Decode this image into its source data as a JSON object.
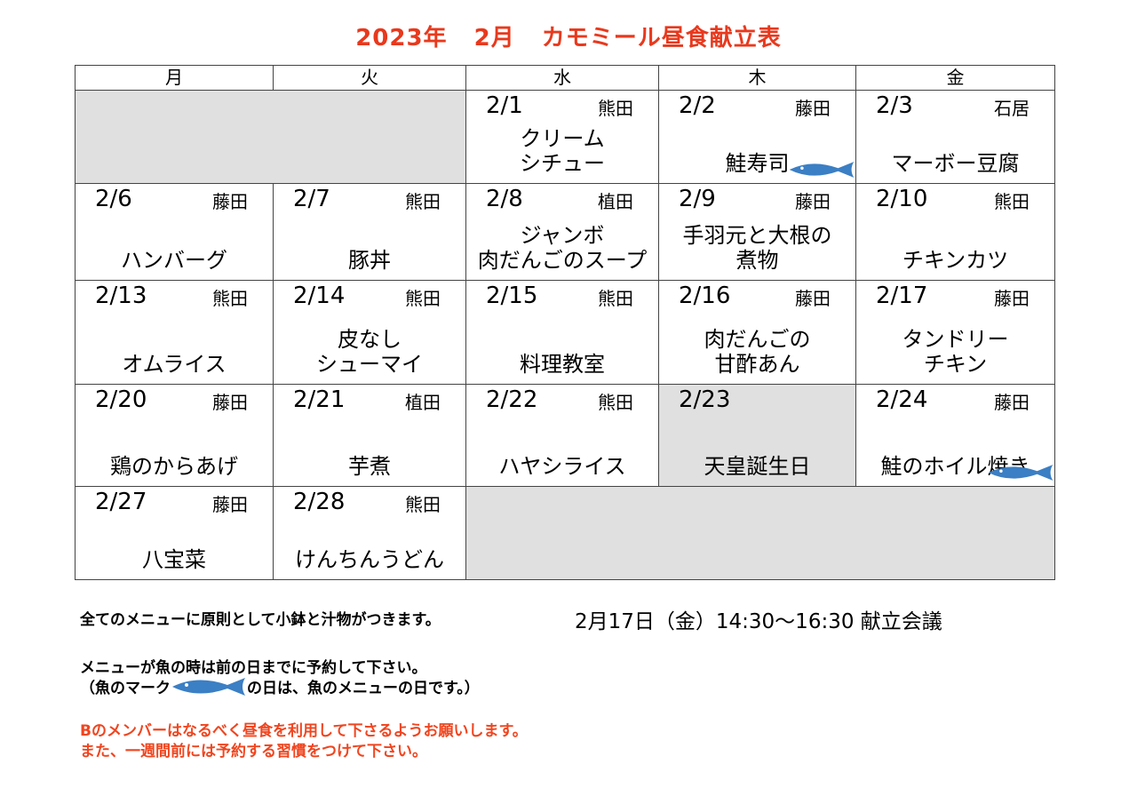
{
  "title": {
    "year": "2023年",
    "month": "2月",
    "name": "カモミール昼食献立表"
  },
  "weekdays": [
    "月",
    "火",
    "水",
    "木",
    "金"
  ],
  "weeks": [
    [
      {
        "blank": 2
      },
      {
        "date": "2/1",
        "staff": "熊田",
        "menu": "クリーム\nシチュー"
      },
      {
        "date": "2/2",
        "staff": "藤田",
        "menu": "鮭寿司",
        "fish": true
      },
      {
        "date": "2/3",
        "staff": "石居",
        "menu": "マーボー豆腐"
      }
    ],
    [
      {
        "date": "2/6",
        "staff": "藤田",
        "menu": "ハンバーグ"
      },
      {
        "date": "2/7",
        "staff": "熊田",
        "menu": "豚丼"
      },
      {
        "date": "2/8",
        "staff": "植田",
        "menu": "ジャンボ\n肉だんごのスープ"
      },
      {
        "date": "2/9",
        "staff": "藤田",
        "menu": "手羽元と大根の\n煮物"
      },
      {
        "date": "2/10",
        "staff": "熊田",
        "menu": "チキンカツ"
      }
    ],
    [
      {
        "date": "2/13",
        "staff": "熊田",
        "menu": "オムライス"
      },
      {
        "date": "2/14",
        "staff": "熊田",
        "menu": "皮なし\nシューマイ"
      },
      {
        "date": "2/15",
        "staff": "熊田",
        "menu": "料理教室"
      },
      {
        "date": "2/16",
        "staff": "藤田",
        "menu": "肉だんごの\n甘酢あん"
      },
      {
        "date": "2/17",
        "staff": "藤田",
        "menu": "タンドリー\nチキン"
      }
    ],
    [
      {
        "date": "2/20",
        "staff": "藤田",
        "menu": "鶏のからあげ"
      },
      {
        "date": "2/21",
        "staff": "植田",
        "menu": "芋煮"
      },
      {
        "date": "2/22",
        "staff": "熊田",
        "menu": "ハヤシライス"
      },
      {
        "date": "2/23",
        "staff": "",
        "menu": "天皇誕生日",
        "holiday": true
      },
      {
        "date": "2/24",
        "staff": "藤田",
        "menu": "鮭のホイル焼き",
        "fish": true
      }
    ],
    [
      {
        "date": "2/27",
        "staff": "藤田",
        "menu": "八宝菜"
      },
      {
        "date": "2/28",
        "staff": "熊田",
        "menu": "けんちんうどん"
      },
      {
        "blank": 3
      }
    ]
  ],
  "notes": {
    "line1": "全てのメニューに原則として小鉢と汁物がつきます。",
    "meeting": "2月17日（金）14:30～16:30 献立会議",
    "line2": "メニューが魚の時は前の日までに予約して下さい。",
    "line3a": "（魚のマーク",
    "line3b": "の日は、魚のメニューの日です。）",
    "red1": "Bのメンバーはなるべく昼食を利用して下さるようお願いします。",
    "red2": "また、一週間前には予約する習慣をつけて下さい。"
  },
  "colors": {
    "title": "#e8391d",
    "red_note": "#f0451f",
    "fish": "#3b7fc4",
    "gray_cell": "#e0e0e0"
  }
}
